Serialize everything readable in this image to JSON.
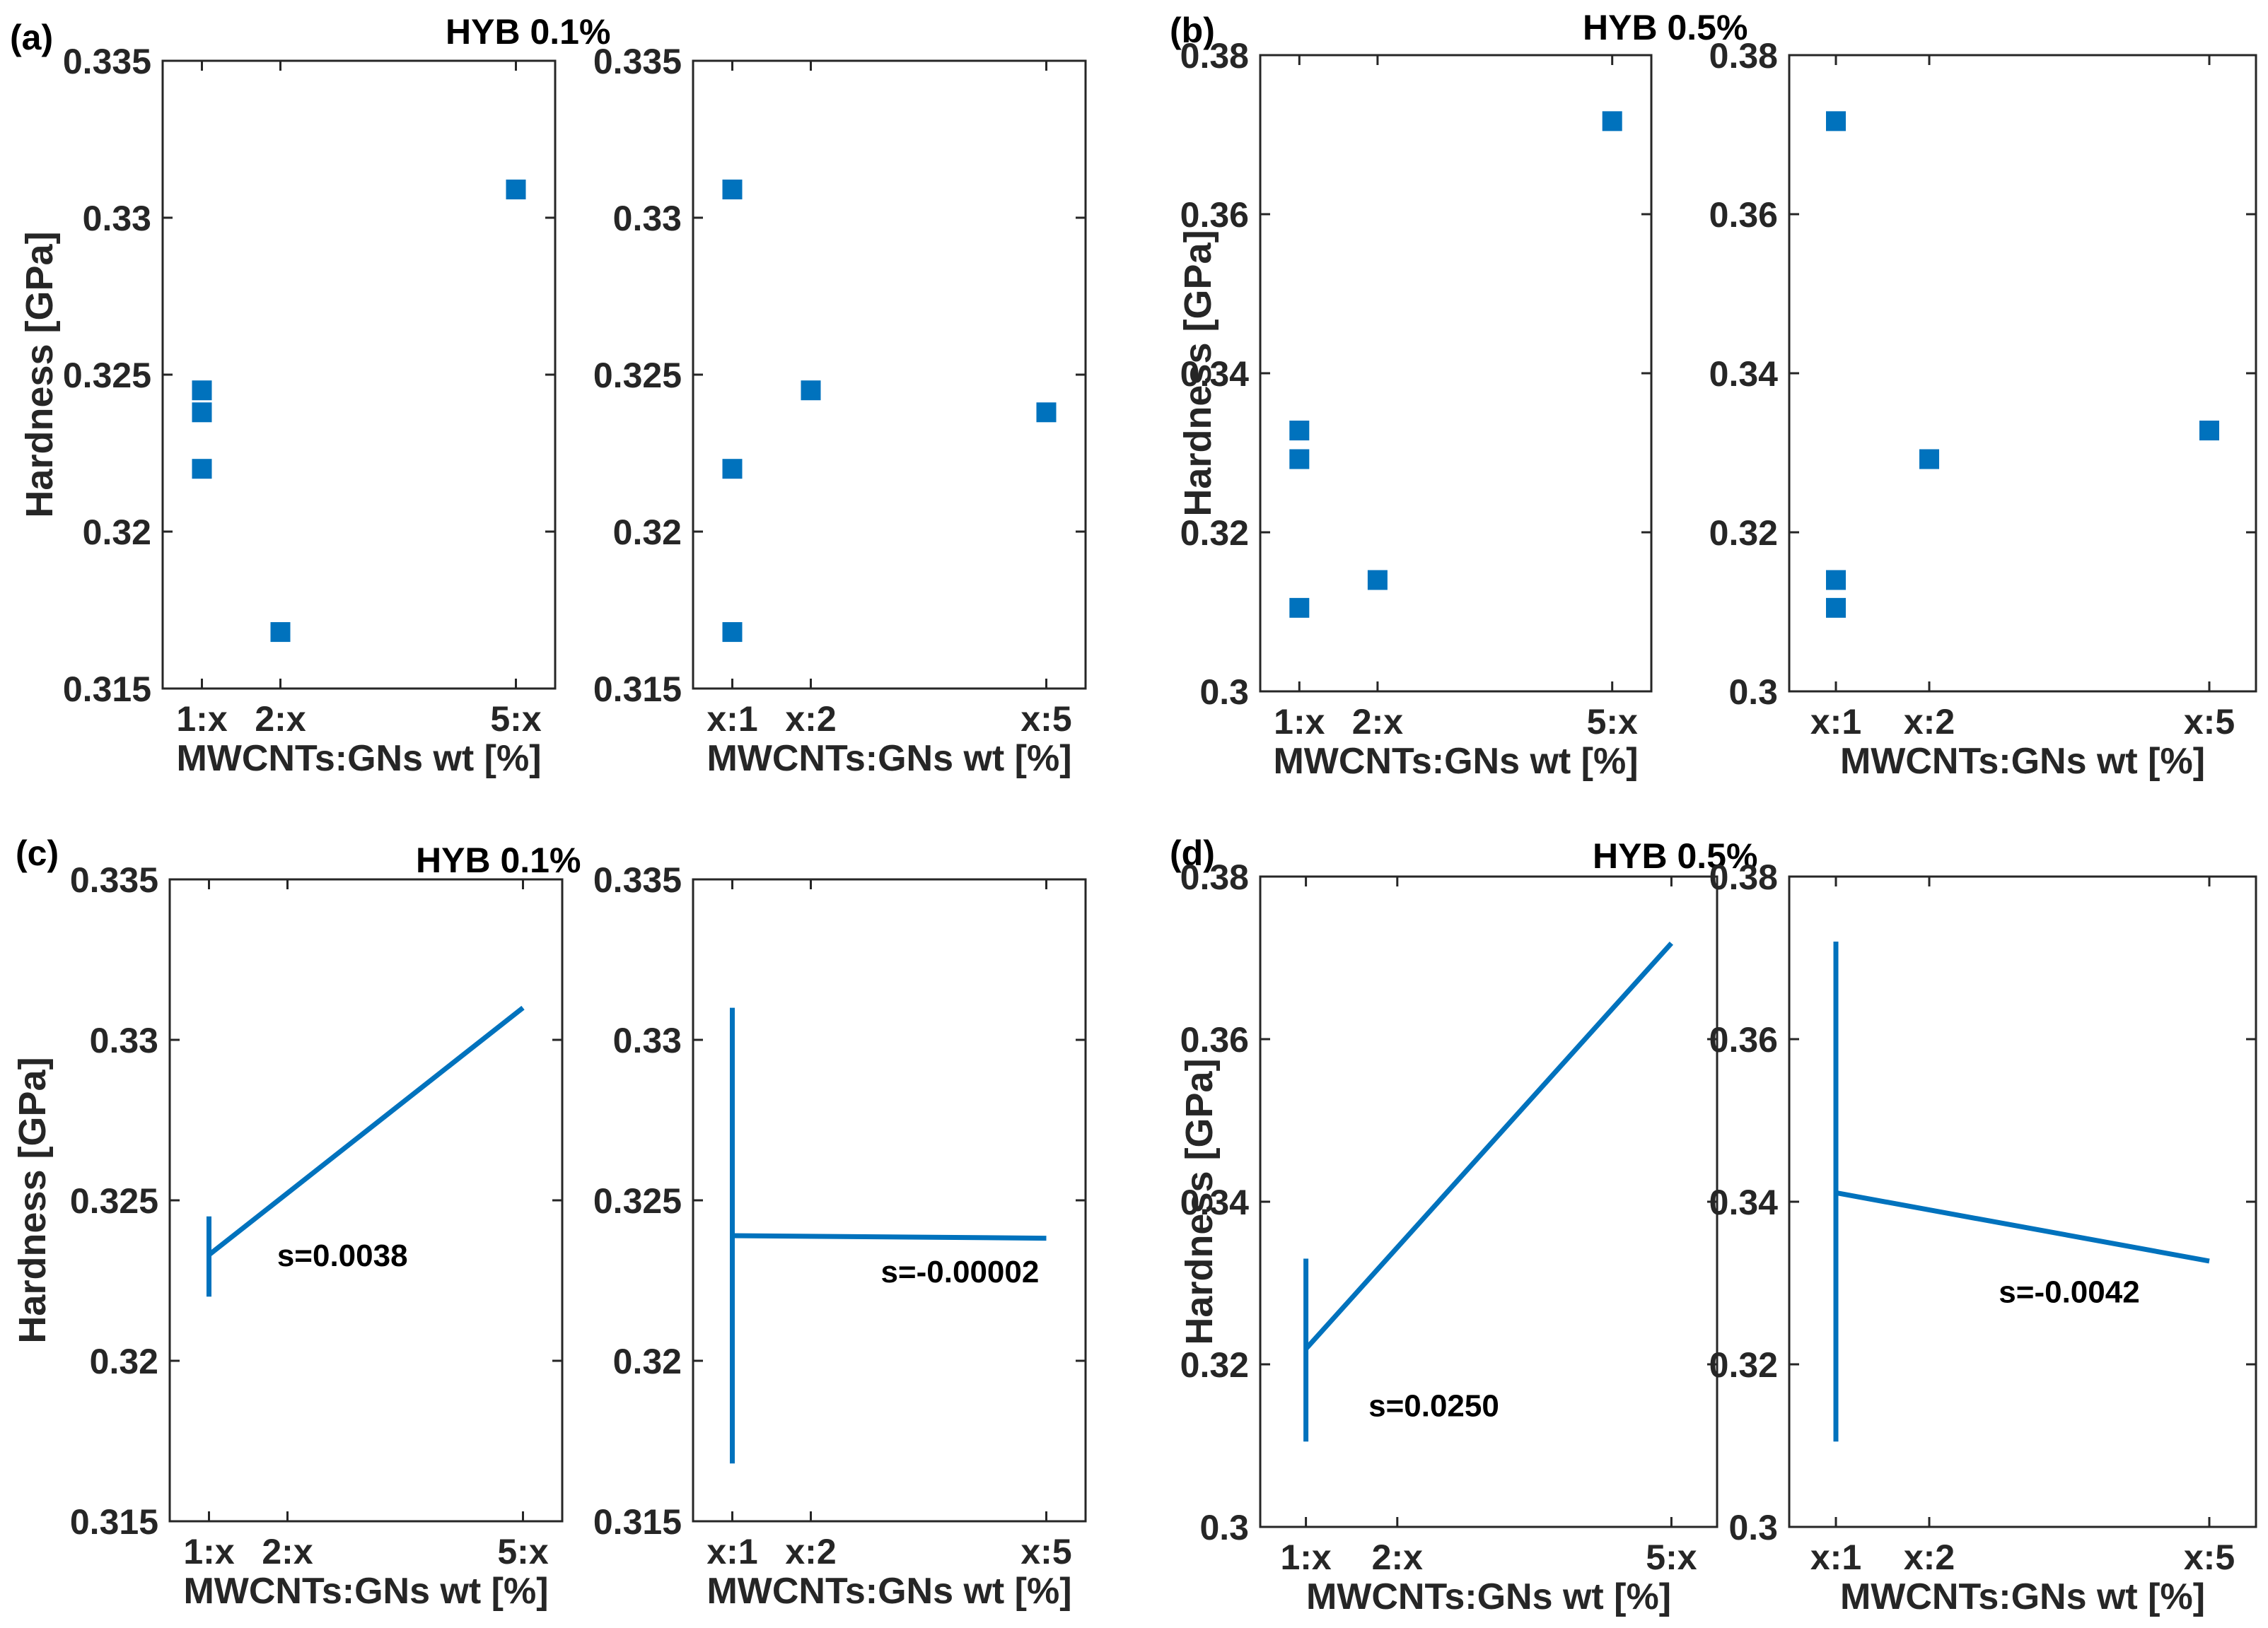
{
  "figure": {
    "accent_color": "#0072BD",
    "panels": [
      {
        "label": "(a)",
        "title": "HYB 0.1%"
      },
      {
        "label": "(b)",
        "title": "HYB 0.5%"
      },
      {
        "label": "(c)",
        "title": "HYB 0.1%"
      },
      {
        "label": "(d)",
        "title": "HYB 0.5%"
      }
    ]
  },
  "chart_data": [
    {
      "id": "a-left",
      "panel": "(a)",
      "type": "scatter",
      "ylabel": "Hardness [GPa]",
      "xlabel": "MWCNTs:GNs wt [%]",
      "ylim": [
        0.315,
        0.335
      ],
      "yticks": [
        "0.315",
        "0.32",
        "0.325",
        "0.33",
        "0.335"
      ],
      "xlim": [
        0.5,
        5.5
      ],
      "xtick_positions": [
        1,
        2,
        5
      ],
      "xtick_labels": [
        "1:x",
        "2:x",
        "5:x"
      ],
      "points": [
        [
          1,
          0.3245
        ],
        [
          1,
          0.3238
        ],
        [
          1,
          0.322
        ],
        [
          2,
          0.3168
        ],
        [
          5,
          0.3309
        ]
      ],
      "marker": "square"
    },
    {
      "id": "a-right",
      "panel": "(a)",
      "type": "scatter",
      "ylabel": "",
      "xlabel": "MWCNTs:GNs wt [%]",
      "ylim": [
        0.315,
        0.335
      ],
      "yticks": [
        "0.315",
        "0.32",
        "0.325",
        "0.33",
        "0.335"
      ],
      "xlim": [
        0.5,
        5.5
      ],
      "xtick_positions": [
        1,
        2,
        5
      ],
      "xtick_labels": [
        "x:1",
        "x:2",
        "x:5"
      ],
      "points": [
        [
          1,
          0.3309
        ],
        [
          1,
          0.322
        ],
        [
          1,
          0.3168
        ],
        [
          2,
          0.3245
        ],
        [
          5,
          0.3238
        ]
      ],
      "marker": "square"
    },
    {
      "id": "b-left",
      "panel": "(b)",
      "type": "scatter",
      "ylabel": "Hardness [GPa]",
      "xlabel": "MWCNTs:GNs wt [%]",
      "ylim": [
        0.3,
        0.38
      ],
      "yticks": [
        "0.3",
        "0.32",
        "0.34",
        "0.36",
        "0.38"
      ],
      "xlim": [
        0.5,
        5.5
      ],
      "xtick_positions": [
        1,
        2,
        5
      ],
      "xtick_labels": [
        "1:x",
        "2:x",
        "5:x"
      ],
      "points": [
        [
          1,
          0.3328
        ],
        [
          1,
          0.3292
        ],
        [
          1,
          0.3105
        ],
        [
          2,
          0.314
        ],
        [
          5,
          0.3717
        ]
      ],
      "marker": "square"
    },
    {
      "id": "b-right",
      "panel": "(b)",
      "type": "scatter",
      "ylabel": "",
      "xlabel": "MWCNTs:GNs wt [%]",
      "ylim": [
        0.3,
        0.38
      ],
      "yticks": [
        "0.3",
        "0.32",
        "0.34",
        "0.36",
        "0.38"
      ],
      "xlim": [
        0.5,
        5.5
      ],
      "xtick_positions": [
        1,
        2,
        5
      ],
      "xtick_labels": [
        "x:1",
        "x:2",
        "x:5"
      ],
      "points": [
        [
          1,
          0.3717
        ],
        [
          1,
          0.314
        ],
        [
          1,
          0.3105
        ],
        [
          2,
          0.3292
        ],
        [
          5,
          0.3328
        ]
      ],
      "marker": "square"
    },
    {
      "id": "c-left",
      "panel": "(c)",
      "type": "line",
      "ylabel": "Hardness [GPa]",
      "xlabel": "MWCNTs:GNs wt [%]",
      "ylim": [
        0.315,
        0.335
      ],
      "yticks": [
        "0.315",
        "0.32",
        "0.325",
        "0.33",
        "0.335"
      ],
      "xlim": [
        0.5,
        5.5
      ],
      "xtick_positions": [
        1,
        2,
        5
      ],
      "xtick_labels": [
        "1:x",
        "2:x",
        "5:x"
      ],
      "errorbar": {
        "x": 1,
        "low": 0.322,
        "high": 0.3245
      },
      "fit": {
        "x": [
          1,
          5
        ],
        "y": [
          0.3233,
          0.331
        ]
      },
      "annotation": {
        "text": "s=0.0038",
        "x": 2.7,
        "y": 0.3233
      }
    },
    {
      "id": "c-right",
      "panel": "(c)",
      "type": "line",
      "ylabel": "",
      "xlabel": "MWCNTs:GNs wt [%]",
      "ylim": [
        0.315,
        0.335
      ],
      "yticks": [
        "0.315",
        "0.32",
        "0.325",
        "0.33",
        "0.335"
      ],
      "xlim": [
        0.5,
        5.5
      ],
      "xtick_positions": [
        1,
        2,
        5
      ],
      "xtick_labels": [
        "x:1",
        "x:2",
        "x:5"
      ],
      "errorbar": {
        "x": 1,
        "low": 0.3168,
        "high": 0.331
      },
      "fit": {
        "x": [
          1,
          5
        ],
        "y": [
          0.3239,
          0.32382
        ]
      },
      "annotation": {
        "text": "s=-0.00002",
        "x": 3.9,
        "y": 0.3228
      }
    },
    {
      "id": "d-left",
      "panel": "(d)",
      "type": "line",
      "ylabel": "Hardness [GPa]",
      "xlabel": "MWCNTs:GNs wt [%]",
      "ylim": [
        0.3,
        0.38
      ],
      "yticks": [
        "0.3",
        "0.32",
        "0.34",
        "0.36",
        "0.38"
      ],
      "xlim": [
        0.5,
        5.5
      ],
      "xtick_positions": [
        1,
        2,
        5
      ],
      "xtick_labels": [
        "1:x",
        "2:x",
        "5:x"
      ],
      "errorbar": {
        "x": 1,
        "low": 0.3105,
        "high": 0.333
      },
      "fit": {
        "x": [
          1,
          5
        ],
        "y": [
          0.3219,
          0.3718
        ]
      },
      "annotation": {
        "text": "s=0.0250",
        "x": 2.4,
        "y": 0.315
      }
    },
    {
      "id": "d-right",
      "panel": "(d)",
      "type": "line",
      "ylabel": "",
      "xlabel": "MWCNTs:GNs wt [%]",
      "ylim": [
        0.3,
        0.38
      ],
      "yticks": [
        "0.3",
        "0.32",
        "0.34",
        "0.36",
        "0.38"
      ],
      "xlim": [
        0.5,
        5.5
      ],
      "xtick_positions": [
        1,
        2,
        5
      ],
      "xtick_labels": [
        "x:1",
        "x:2",
        "x:5"
      ],
      "errorbar": {
        "x": 1,
        "low": 0.3105,
        "high": 0.372
      },
      "fit": {
        "x": [
          1,
          5
        ],
        "y": [
          0.3411,
          0.3327
        ]
      },
      "annotation": {
        "text": "s=-0.0042",
        "x": 3.5,
        "y": 0.329
      }
    }
  ]
}
